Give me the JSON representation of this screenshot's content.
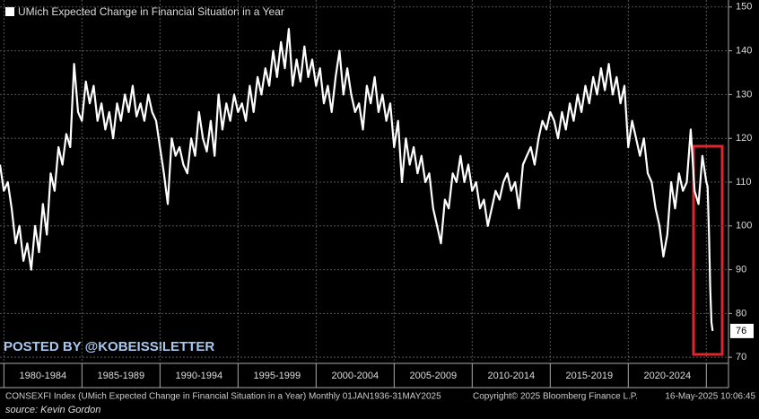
{
  "chart_data": {
    "type": "line",
    "legend": "UMich Expected Change in Financial Situation in a Year",
    "color": "#ffffff",
    "watermark": "POSTED BY @KOBEISSILETTER",
    "footer_left": "CONSEXFI Index (UMich Expected Change in Financial Situation in a Year)  Monthly 01JAN1936-31MAY2025",
    "footer_center": "Copyright© 2025 Bloomberg Finance L.P.",
    "footer_right": "16-May-2025 10:06:45",
    "source": "source: Kevin Gordon",
    "last_value_label": "76",
    "x": [
      1979.75,
      1980,
      1980.25,
      1980.5,
      1980.75,
      1981,
      1981.25,
      1981.5,
      1981.75,
      1982,
      1982.25,
      1982.5,
      1982.75,
      1983,
      1983.25,
      1983.5,
      1983.75,
      1984,
      1984.25,
      1984.5,
      1984.75,
      1985,
      1985.25,
      1985.5,
      1985.75,
      1986,
      1986.25,
      1986.5,
      1986.75,
      1987,
      1987.25,
      1987.5,
      1987.75,
      1988,
      1988.25,
      1988.5,
      1988.75,
      1989,
      1989.25,
      1989.5,
      1989.75,
      1990,
      1990.25,
      1990.5,
      1990.75,
      1991,
      1991.25,
      1991.5,
      1991.75,
      1992,
      1992.25,
      1992.5,
      1992.75,
      1993,
      1993.25,
      1993.5,
      1993.75,
      1994,
      1994.25,
      1994.5,
      1994.75,
      1995,
      1995.25,
      1995.5,
      1995.75,
      1996,
      1996.25,
      1996.5,
      1996.75,
      1997,
      1997.25,
      1997.5,
      1997.75,
      1998,
      1998.25,
      1998.5,
      1998.75,
      1999,
      1999.25,
      1999.5,
      1999.75,
      2000,
      2000.25,
      2000.5,
      2000.75,
      2001,
      2001.25,
      2001.5,
      2001.75,
      2002,
      2002.25,
      2002.5,
      2002.75,
      2003,
      2003.25,
      2003.5,
      2003.75,
      2004,
      2004.25,
      2004.5,
      2004.75,
      2005,
      2005.25,
      2005.5,
      2005.75,
      2006,
      2006.25,
      2006.5,
      2006.75,
      2007,
      2007.25,
      2007.5,
      2007.75,
      2008,
      2008.25,
      2008.5,
      2008.75,
      2009,
      2009.25,
      2009.5,
      2009.75,
      2010,
      2010.25,
      2010.5,
      2010.75,
      2011,
      2011.25,
      2011.5,
      2011.75,
      2012,
      2012.25,
      2012.5,
      2012.75,
      2013,
      2013.25,
      2013.5,
      2013.75,
      2014,
      2014.25,
      2014.5,
      2014.75,
      2015,
      2015.25,
      2015.5,
      2015.75,
      2016,
      2016.25,
      2016.5,
      2016.75,
      2017,
      2017.25,
      2017.5,
      2017.75,
      2018,
      2018.25,
      2018.5,
      2018.75,
      2019,
      2019.25,
      2019.5,
      2019.75,
      2020,
      2020.25,
      2020.5,
      2020.75,
      2021,
      2021.25,
      2021.5,
      2021.75,
      2022,
      2022.25,
      2022.5,
      2022.75,
      2023,
      2023.25,
      2023.5,
      2023.75,
      2024,
      2024.25,
      2024.5,
      2024.75,
      2025,
      2025.08,
      2025.17,
      2025.25,
      2025.33,
      2025.4
    ],
    "values": [
      114,
      108,
      110,
      104,
      96,
      100,
      92,
      96,
      90,
      100,
      94,
      105,
      98,
      112,
      108,
      118,
      114,
      121,
      118,
      137,
      126,
      124,
      133,
      128,
      132,
      124,
      128,
      122,
      126,
      120,
      128,
      124,
      130,
      126,
      132,
      125,
      128,
      124,
      130,
      126,
      124,
      118,
      112,
      105,
      120,
      116,
      118,
      114,
      112,
      120,
      116,
      126,
      120,
      117,
      124,
      116,
      130,
      122,
      128,
      124,
      130,
      126,
      128,
      124,
      132,
      126,
      134,
      130,
      136,
      132,
      140,
      134,
      142,
      136,
      145,
      132,
      138,
      133,
      141,
      134,
      138,
      132,
      136,
      128,
      132,
      126,
      134,
      140,
      130,
      136,
      130,
      126,
      128,
      122,
      132,
      128,
      134,
      126,
      130,
      124,
      128,
      118,
      124,
      110,
      120,
      114,
      118,
      112,
      116,
      110,
      112,
      104,
      100,
      96,
      106,
      104,
      112,
      110,
      116,
      110,
      114,
      108,
      110,
      104,
      106,
      100,
      104,
      108,
      106,
      110,
      112,
      108,
      110,
      104,
      114,
      116,
      118,
      114,
      120,
      124,
      122,
      126,
      124,
      120,
      126,
      122,
      128,
      124,
      130,
      126,
      132,
      128,
      134,
      130,
      136,
      131,
      137,
      130,
      134,
      128,
      132,
      118,
      124,
      120,
      116,
      120,
      112,
      110,
      104,
      100,
      93,
      98,
      110,
      104,
      112,
      108,
      110,
      122,
      108,
      105,
      116,
      110,
      109,
      98,
      86,
      78,
      76
    ],
    "xlim": [
      1979.75,
      2026.42
    ],
    "xticks": [
      1980,
      1985,
      1990,
      1995,
      2000,
      2005,
      2010,
      2015,
      2020,
      2025
    ],
    "x_periods": [
      "1980-1984",
      "1985-1989",
      "1990-1994",
      "1995-1999",
      "2000-2004",
      "2005-2009",
      "2010-2014",
      "2015-2019",
      "2020-2024"
    ],
    "ylim": [
      68.6,
      151.6
    ],
    "yticks": [
      70,
      80,
      90,
      100,
      110,
      120,
      130,
      140,
      150
    ],
    "grid": true
  }
}
